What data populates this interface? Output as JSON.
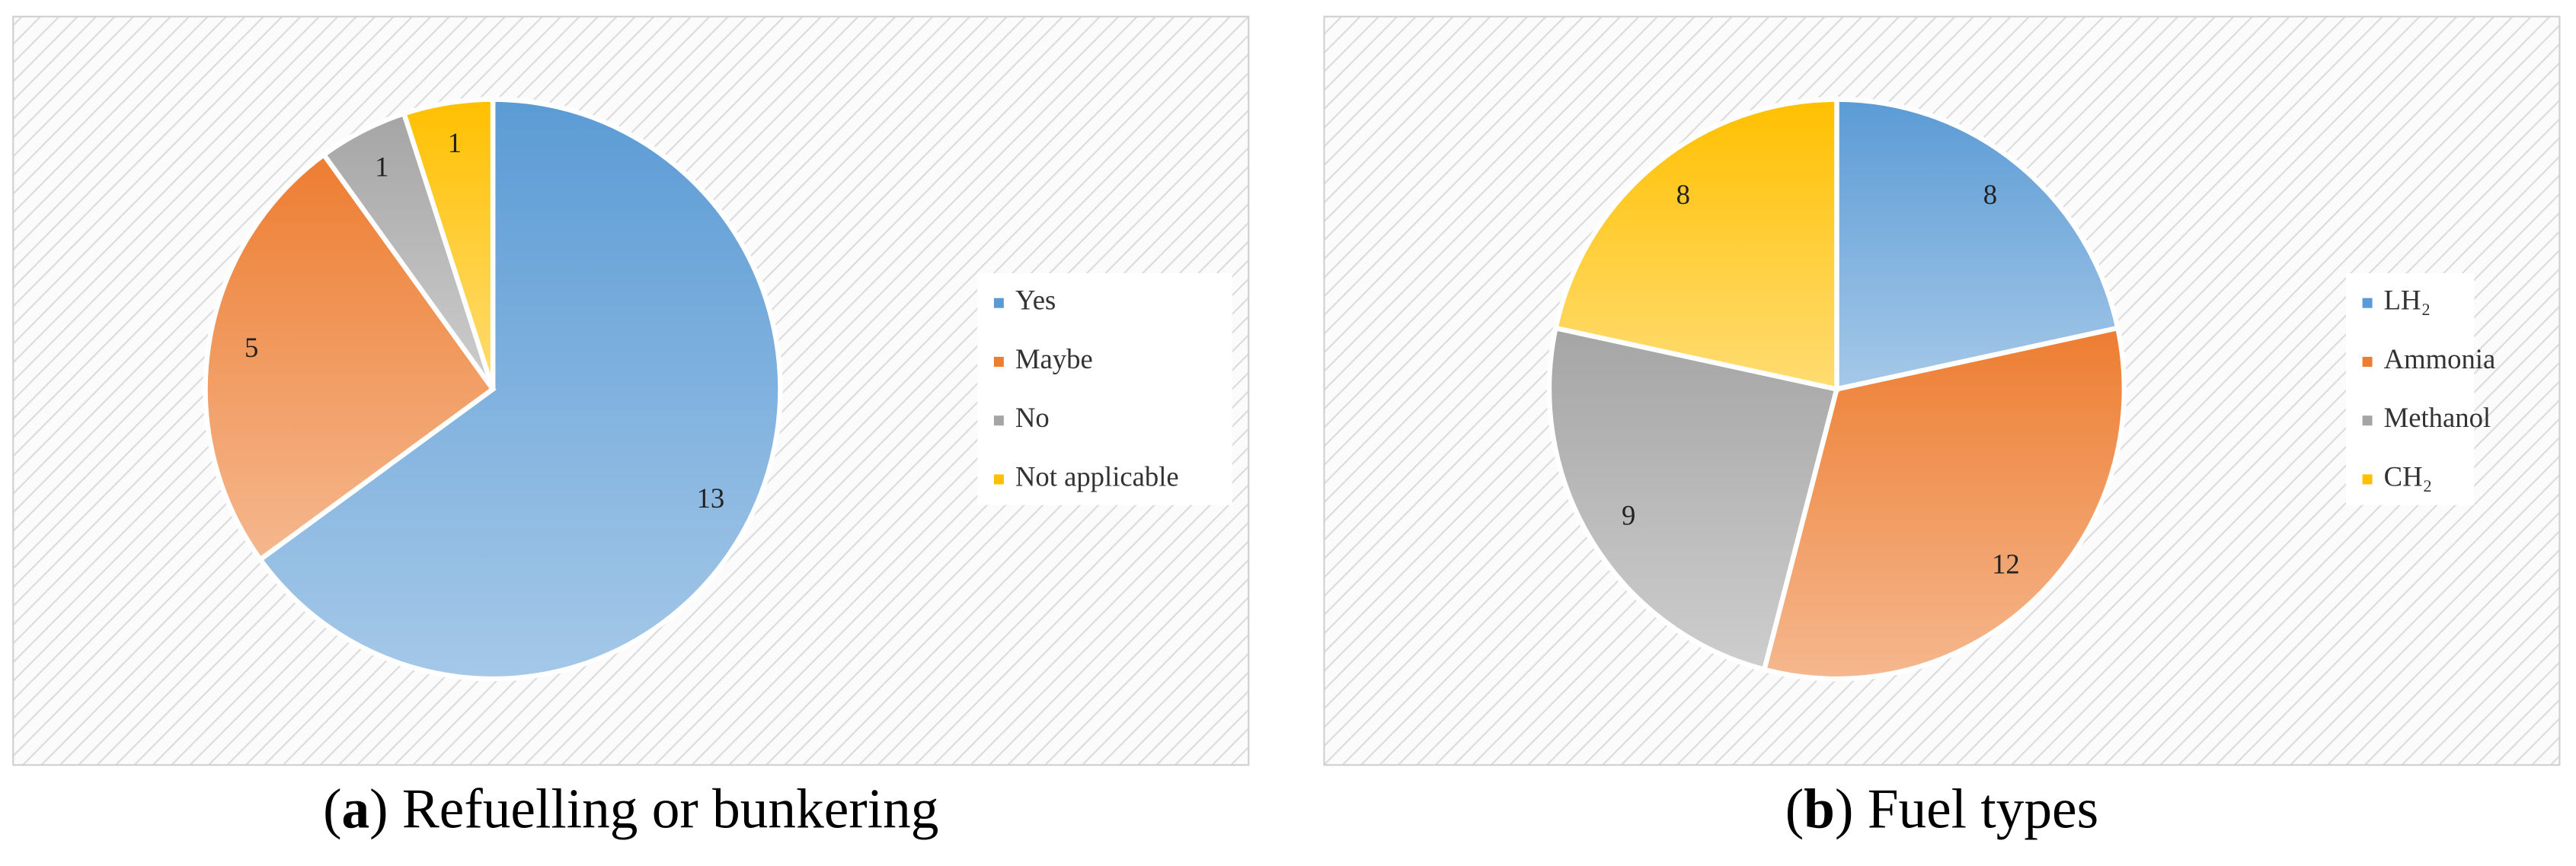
{
  "chart_data": [
    {
      "type": "pie",
      "caption": [
        "(",
        "a",
        ") Refuelling or bunkering"
      ],
      "categories": [
        "Yes",
        "Maybe",
        "No",
        "Not applicable"
      ],
      "values": [
        13,
        5,
        1,
        1
      ],
      "colors": [
        "#5b9bd5",
        "#ed7d31",
        "#a5a5a5",
        "#ffc000"
      ],
      "legend": "right"
    },
    {
      "type": "pie",
      "caption": [
        "(",
        "b",
        ") Fuel types"
      ],
      "categories": [
        "LH₂",
        "Ammonia",
        "Methanol",
        "CH₂"
      ],
      "values": [
        8,
        12,
        9,
        8
      ],
      "colors": [
        "#5b9bd5",
        "#ed7d31",
        "#a5a5a5",
        "#ffc000"
      ],
      "legend": "right"
    }
  ]
}
